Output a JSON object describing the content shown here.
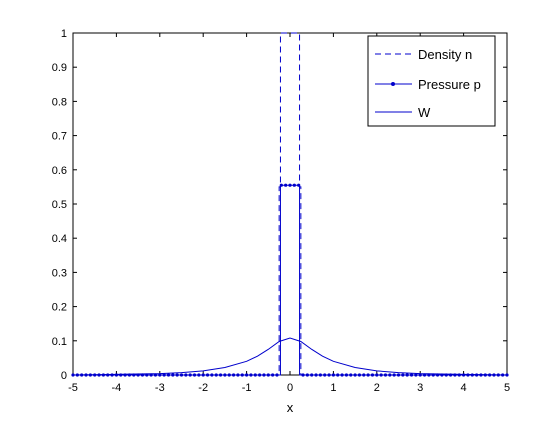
{
  "chart_data": {
    "type": "line",
    "xlabel": "x",
    "ylabel": "",
    "xlim": [
      -5,
      5
    ],
    "ylim": [
      0,
      1
    ],
    "x_ticks": [
      -5,
      -4,
      -3,
      -2,
      -1,
      0,
      1,
      2,
      3,
      4,
      5
    ],
    "y_ticks": [
      0,
      0.1,
      0.2,
      0.3,
      0.4,
      0.5,
      0.6,
      0.7,
      0.8,
      0.9,
      1
    ],
    "x_tick_labels": [
      "-5",
      "-4",
      "-3",
      "-2",
      "-1",
      "0",
      "1",
      "2",
      "3",
      "4",
      "5"
    ],
    "y_tick_labels": [
      "0",
      "0.1",
      "0.2",
      "0.3",
      "0.4",
      "0.5",
      "0.6",
      "0.7",
      "0.8",
      "0.9",
      "1"
    ],
    "grid": false,
    "legend_position": "top-right",
    "series": [
      {
        "name": "Density n",
        "style": "dashed",
        "color": "#0000cc",
        "x": [
          -5,
          -0.25,
          -0.25,
          -0.22,
          -0.22,
          0.22,
          0.22,
          0.25,
          0.25,
          5
        ],
        "y": [
          0,
          0,
          0.55,
          0.55,
          1.0,
          1.0,
          0.55,
          0.55,
          0,
          0
        ]
      },
      {
        "name": "Pressure p",
        "style": "solid-dot-markers",
        "color": "#0000cc",
        "x": [
          -5,
          -0.22,
          -0.22,
          0.22,
          0.22,
          5
        ],
        "y": [
          0,
          0,
          0.555,
          0.555,
          0,
          0
        ]
      },
      {
        "name": "W",
        "style": "solid",
        "color": "#0000cc",
        "x": [
          -5,
          -4,
          -3,
          -2.5,
          -2,
          -1.5,
          -1,
          -0.75,
          -0.5,
          -0.25,
          0,
          0.25,
          0.5,
          0.75,
          1,
          1.5,
          2,
          2.5,
          3,
          4,
          5
        ],
        "y": [
          0.0,
          0.002,
          0.004,
          0.007,
          0.012,
          0.022,
          0.04,
          0.055,
          0.075,
          0.098,
          0.108,
          0.098,
          0.075,
          0.055,
          0.04,
          0.022,
          0.012,
          0.007,
          0.004,
          0.002,
          0.0
        ]
      }
    ]
  }
}
